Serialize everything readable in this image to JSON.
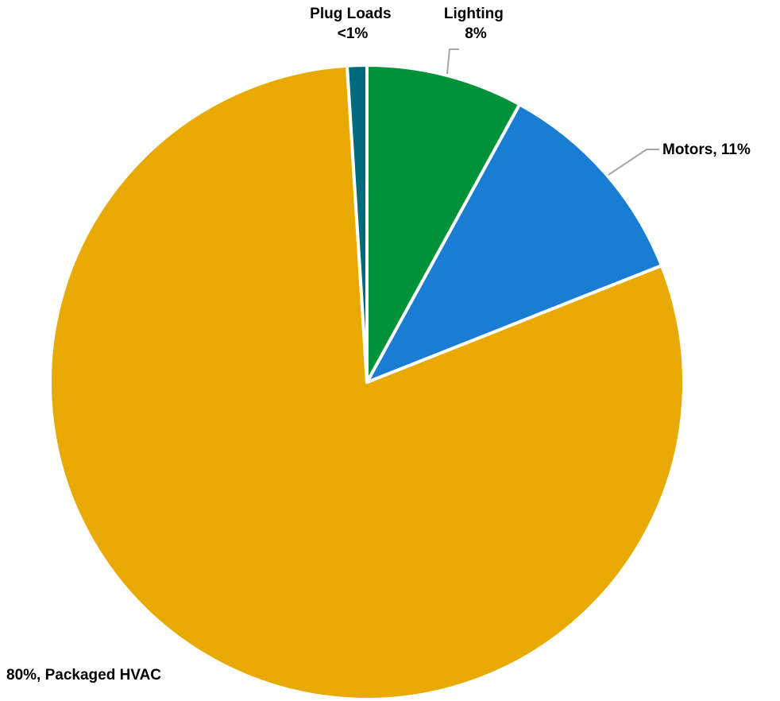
{
  "chart_data": {
    "type": "pie",
    "title": "",
    "start_angle_deg": 0,
    "direction": "clockwise",
    "slices": [
      {
        "id": "lighting",
        "name": "Lighting",
        "value": 8,
        "color": "#00923a",
        "label_lines": [
          "Lighting",
          "8%"
        ]
      },
      {
        "id": "motors",
        "name": "Motors",
        "value": 11,
        "color": "#1a7dd4",
        "label_lines": [
          "Motors, 11%"
        ]
      },
      {
        "id": "packaged-hvac",
        "name": "Packaged HVAC",
        "value": 80,
        "color": "#e8aa00",
        "label_lines": [
          "80%, Packaged HVAC"
        ]
      },
      {
        "id": "plug-loads",
        "name": "Plug Loads",
        "value": 1,
        "color": "#006b7c",
        "label_lines": [
          "Plug Loads",
          "<1%"
        ]
      }
    ]
  }
}
